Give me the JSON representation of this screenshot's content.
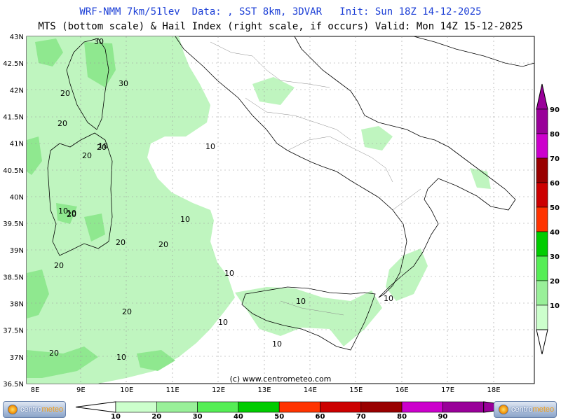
{
  "header": {
    "line1": "WRF-NMM 7km/51lev  Data: , SST 8km, 3DVAR   Init: Sun 18Z 14-12-2025",
    "line2": "MTS (bottom scale) & Hail Index (right scale, if occurs) Valid: Mon 14Z 15-12-2025"
  },
  "axes": {
    "lat_labels": [
      "43N",
      "42.5N",
      "42N",
      "41.5N",
      "41N",
      "40.5N",
      "40N",
      "39.5N",
      "39N",
      "38.5N",
      "38N",
      "37.5N",
      "37N",
      "36.5N"
    ],
    "lon_labels": [
      "8E",
      "9E",
      "10E",
      "11E",
      "12E",
      "13E",
      "14E",
      "15E",
      "16E",
      "17E",
      "18E"
    ]
  },
  "contour_labels": [
    "30",
    "20",
    "30",
    "20",
    "20",
    "20",
    "20",
    "10",
    "10",
    "20",
    "10",
    "20",
    "20",
    "20",
    "10",
    "10",
    "10",
    "10",
    "10",
    "10",
    "20",
    "10",
    "10"
  ],
  "copyright": "(c) www.centrometeo.com",
  "bottom_scale": {
    "labels": [
      "10",
      "20",
      "30",
      "40",
      "50",
      "60",
      "70",
      "80",
      "90"
    ],
    "colors": [
      "#ccffcc",
      "#99f099",
      "#55ee55",
      "#00cc00",
      "#ff3300",
      "#cc0000",
      "#990000",
      "#cc00cc",
      "#990099"
    ]
  },
  "right_scale": {
    "labels": [
      "90",
      "80",
      "70",
      "60",
      "50",
      "40",
      "30",
      "20",
      "10"
    ],
    "colors": [
      "#990099",
      "#cc00cc",
      "#990000",
      "#cc0000",
      "#ff3300",
      "#00cc00",
      "#55ee55",
      "#99f099",
      "#ccffcc"
    ]
  },
  "logo": {
    "part1": "centro",
    "part2": "meteo"
  }
}
